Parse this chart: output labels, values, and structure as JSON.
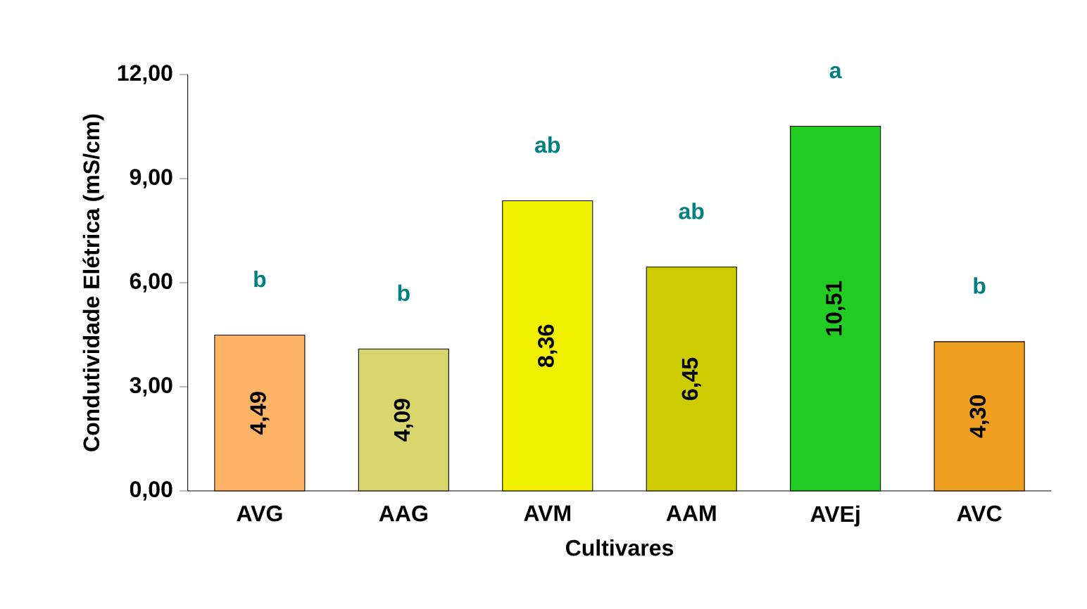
{
  "chart_data": {
    "type": "bar",
    "xlabel": "Cultivares",
    "ylabel": "Condutividade Elétrica (mS/cm)",
    "categories": [
      "AVG",
      "AAG",
      "AVM",
      "AAM",
      "AVEj",
      "AVC"
    ],
    "values": [
      4.49,
      4.09,
      8.36,
      6.45,
      10.51,
      4.3
    ],
    "colors": [
      "#ffb366",
      "#d9d66e",
      "#f0f000",
      "#cccc00",
      "#22cc22",
      "#f0a020"
    ],
    "value_labels": [
      "4,49",
      "4,09",
      "8,36",
      "6,45",
      "10,51",
      "4,30"
    ],
    "ylim": [
      0,
      12
    ],
    "yticks": [
      {
        "value": 0,
        "label": "0,00"
      },
      {
        "value": 3,
        "label": "3,00"
      },
      {
        "value": 6,
        "label": "6,00"
      },
      {
        "value": 9,
        "label": "9,00"
      },
      {
        "value": 12,
        "label": "12,00"
      }
    ],
    "annotations": [
      "b",
      "b",
      "ab",
      "ab",
      "a",
      "b"
    ],
    "grid": false
  }
}
